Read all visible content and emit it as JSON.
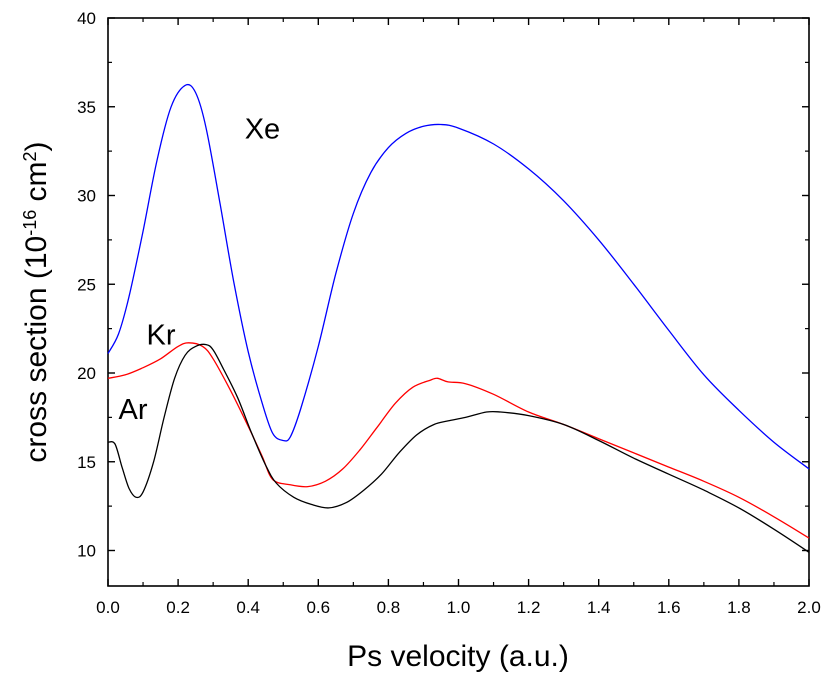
{
  "chart_data": {
    "type": "line",
    "xlabel": "Ps velocity (a.u.)",
    "ylabel": {
      "prefix": "cross section (10",
      "exp1": "-16",
      "mid": " cm",
      "exp2": "2",
      "suffix": ")"
    },
    "xlim": [
      0.0,
      2.0
    ],
    "ylim": [
      8,
      40
    ],
    "xticks": [
      "0.0",
      "0.2",
      "0.4",
      "0.6",
      "0.8",
      "1.0",
      "1.2",
      "1.4",
      "1.6",
      "1.8",
      "2.0"
    ],
    "yticks": [
      "10",
      "15",
      "20",
      "25",
      "30",
      "35",
      "40"
    ],
    "grid": false,
    "series": [
      {
        "name": "Xe",
        "color": "#0000ff",
        "points": [
          [
            0.0,
            21.1
          ],
          [
            0.03,
            22.2
          ],
          [
            0.06,
            24.3
          ],
          [
            0.1,
            28.0
          ],
          [
            0.14,
            32.0
          ],
          [
            0.18,
            35.0
          ],
          [
            0.22,
            36.2
          ],
          [
            0.25,
            35.8
          ],
          [
            0.28,
            33.8
          ],
          [
            0.32,
            29.5
          ],
          [
            0.36,
            25.0
          ],
          [
            0.4,
            21.2
          ],
          [
            0.44,
            18.3
          ],
          [
            0.47,
            16.6
          ],
          [
            0.5,
            16.2
          ],
          [
            0.52,
            16.4
          ],
          [
            0.55,
            18.0
          ],
          [
            0.6,
            21.5
          ],
          [
            0.65,
            25.6
          ],
          [
            0.7,
            29.0
          ],
          [
            0.75,
            31.3
          ],
          [
            0.8,
            32.7
          ],
          [
            0.85,
            33.5
          ],
          [
            0.9,
            33.9
          ],
          [
            0.95,
            34.0
          ],
          [
            1.0,
            33.8
          ],
          [
            1.1,
            32.9
          ],
          [
            1.2,
            31.5
          ],
          [
            1.3,
            29.7
          ],
          [
            1.4,
            27.5
          ],
          [
            1.5,
            25.0
          ],
          [
            1.6,
            22.4
          ],
          [
            1.7,
            19.9
          ],
          [
            1.8,
            17.9
          ],
          [
            1.9,
            16.1
          ],
          [
            2.0,
            14.6
          ]
        ]
      },
      {
        "name": "Kr",
        "color": "#ff0000",
        "points": [
          [
            0.0,
            19.7
          ],
          [
            0.05,
            19.9
          ],
          [
            0.1,
            20.3
          ],
          [
            0.15,
            20.8
          ],
          [
            0.2,
            21.5
          ],
          [
            0.23,
            21.7
          ],
          [
            0.27,
            21.5
          ],
          [
            0.3,
            20.8
          ],
          [
            0.35,
            19.0
          ],
          [
            0.4,
            17.0
          ],
          [
            0.44,
            15.3
          ],
          [
            0.47,
            14.0
          ],
          [
            0.52,
            13.7
          ],
          [
            0.57,
            13.6
          ],
          [
            0.62,
            13.9
          ],
          [
            0.67,
            14.6
          ],
          [
            0.72,
            15.7
          ],
          [
            0.77,
            17.0
          ],
          [
            0.82,
            18.3
          ],
          [
            0.87,
            19.2
          ],
          [
            0.92,
            19.6
          ],
          [
            0.94,
            19.7
          ],
          [
            0.97,
            19.5
          ],
          [
            1.02,
            19.4
          ],
          [
            1.1,
            18.8
          ],
          [
            1.2,
            17.8
          ],
          [
            1.3,
            17.1
          ],
          [
            1.4,
            16.3
          ],
          [
            1.5,
            15.5
          ],
          [
            1.6,
            14.7
          ],
          [
            1.7,
            13.9
          ],
          [
            1.8,
            13.0
          ],
          [
            1.9,
            11.9
          ],
          [
            2.0,
            10.7
          ]
        ]
      },
      {
        "name": "Ar",
        "color": "#000000",
        "points": [
          [
            0.0,
            16.1
          ],
          [
            0.02,
            16.0
          ],
          [
            0.04,
            14.7
          ],
          [
            0.06,
            13.5
          ],
          [
            0.08,
            13.0
          ],
          [
            0.1,
            13.3
          ],
          [
            0.13,
            15.0
          ],
          [
            0.16,
            17.5
          ],
          [
            0.19,
            19.7
          ],
          [
            0.22,
            21.0
          ],
          [
            0.25,
            21.5
          ],
          [
            0.28,
            21.6
          ],
          [
            0.3,
            21.3
          ],
          [
            0.33,
            20.2
          ],
          [
            0.37,
            18.6
          ],
          [
            0.41,
            16.6
          ],
          [
            0.45,
            14.8
          ],
          [
            0.48,
            13.8
          ],
          [
            0.53,
            13.0
          ],
          [
            0.58,
            12.6
          ],
          [
            0.63,
            12.4
          ],
          [
            0.68,
            12.7
          ],
          [
            0.73,
            13.4
          ],
          [
            0.78,
            14.3
          ],
          [
            0.83,
            15.5
          ],
          [
            0.88,
            16.5
          ],
          [
            0.93,
            17.1
          ],
          [
            0.97,
            17.3
          ],
          [
            1.02,
            17.5
          ],
          [
            1.08,
            17.8
          ],
          [
            1.12,
            17.8
          ],
          [
            1.2,
            17.6
          ],
          [
            1.3,
            17.1
          ],
          [
            1.4,
            16.2
          ],
          [
            1.5,
            15.2
          ],
          [
            1.6,
            14.3
          ],
          [
            1.7,
            13.4
          ],
          [
            1.8,
            12.4
          ],
          [
            1.9,
            11.2
          ],
          [
            2.0,
            9.9
          ]
        ]
      }
    ],
    "annotations": [
      {
        "text": "Xe",
        "x": 0.39,
        "y": 33.2
      },
      {
        "text": "Kr",
        "x": 0.11,
        "y": 21.6
      },
      {
        "text": "Ar",
        "x": 0.03,
        "y": 17.4
      }
    ]
  }
}
